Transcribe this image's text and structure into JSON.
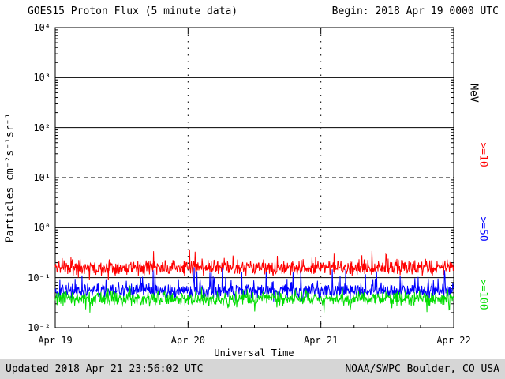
{
  "header": {
    "title": "GOES15 Proton Flux (5 minute data)",
    "begin_label": "Begin: 2018 Apr 19 0000 UTC"
  },
  "footer": {
    "updated": "Updated 2018 Apr 21 23:56:02 UTC",
    "source": "NOAA/SWPC Boulder, CO USA"
  },
  "chart_data": {
    "type": "line",
    "title": "GOES15 Proton Flux (5 minute data)",
    "xlabel": "Universal Time",
    "ylabel": "Particles cm⁻²s⁻¹sr⁻¹",
    "right_axis_label": "MeV",
    "x_start": "2018 Apr 19 0000 UTC",
    "x_end": "2018 Apr 22 0000 UTC",
    "x_range_days": 3,
    "points_per_day": 288,
    "cadence": "5 minute",
    "x_tick_labels": [
      "Apr 19",
      "Apr 20",
      "Apr 21",
      "Apr 22"
    ],
    "y_scale": "log",
    "ylim": [
      0.01,
      10000
    ],
    "ylim_exponents": [
      -2,
      4
    ],
    "y_tick_exponents": [
      4,
      3,
      2,
      1,
      0,
      -1,
      -2
    ],
    "y_tick_labels": [
      "10⁴",
      "10³",
      "10²",
      "10¹",
      "10⁰",
      "10⁻¹",
      "10⁻²"
    ],
    "gridlines": {
      "horizontal_solid_exponents": [
        3,
        2,
        0,
        -1
      ],
      "horizontal_dashed_exponents": [
        1
      ],
      "vertical_dotted_days": [
        1,
        2
      ]
    },
    "series": [
      {
        "name": ">=10 MeV",
        "label": ">=10",
        "color": "#ff0000",
        "typical_flux": 0.16,
        "min_flux": 0.09,
        "max_flux": 0.42,
        "noise": {
          "spread_dex": 0.18,
          "spike_p": 0.05,
          "spike_amp_dex": 0.3,
          "dip_p": 0.04,
          "dip_amp_dex": 0.15
        },
        "seed": 11
      },
      {
        "name": ">=50 MeV",
        "label": ">=50",
        "color": "#0000ff",
        "typical_flux": 0.055,
        "min_flux": 0.03,
        "max_flux": 0.21,
        "noise": {
          "spread_dex": 0.16,
          "spike_p": 0.1,
          "spike_amp_dex": 0.4,
          "dip_p": 0.06,
          "dip_amp_dex": 0.18
        },
        "seed": 22
      },
      {
        "name": ">=100 MeV",
        "label": ">=100",
        "color": "#00dd00",
        "typical_flux": 0.038,
        "min_flux": 0.02,
        "max_flux": 0.08,
        "noise": {
          "spread_dex": 0.16,
          "spike_p": 0.08,
          "spike_amp_dex": 0.18,
          "dip_p": 0.06,
          "dip_amp_dex": 0.18
        },
        "seed": 33
      }
    ]
  }
}
